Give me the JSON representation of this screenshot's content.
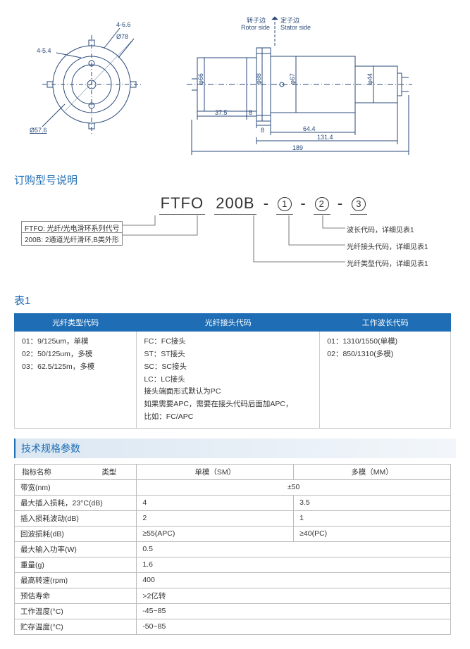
{
  "drawing": {
    "rotor_label_cn": "转子边",
    "rotor_label_en": "Rotor side",
    "stator_label_cn": "定子边",
    "stator_label_en": "Stator side",
    "dim_4_66": "4-6.6",
    "dim_phi78": "Ø78",
    "dim_4_54": "4-5.4",
    "dim_phi576": "Ø57.6",
    "dim_phi66": "φ66",
    "dim_phi88": "φ88",
    "dim_phi67": "φ67",
    "dim_phi44": "φ44",
    "dim_375": "37.5",
    "dim_8a": "8",
    "dim_8b": "8",
    "dim_644": "64.4",
    "dim_1314": "131.4",
    "dim_189": "189",
    "stroke": "#2a4a7a",
    "thin_stroke": "#2a4a7a"
  },
  "ordering": {
    "title": "订购型号说明",
    "prefix": "FTFO",
    "base": "200B",
    "sep": "-",
    "p1": "1",
    "p2": "2",
    "p3": "3",
    "ftfo_desc": "FTFO: 光纤/光电滑环系列代号",
    "b200_desc": "200B: 2通道光纤滑环,B类外形",
    "lbl_wavelength": "波长代码，详细见表1",
    "lbl_connector": "光纤接头代码，详细见表1",
    "lbl_fibertype": "光纤类型代码，详细见表1"
  },
  "table1": {
    "title": "表1",
    "h1": "光纤类型代码",
    "h2": "光纤接头代码",
    "h3": "工作波长代码",
    "c1": "01：9/125um，单模\n02：50/125um，多模\n03：62.5/125m，多模",
    "c2": "FC：FC接头\nST：ST接头\nSC：SC接头\nLC：LC接头\n接头端面形式默认为PC\n如果需要APC，需要在接头代码后面加APC，\n比如：FC/APC",
    "c3": "01：1310/1550(单模)\n02：850/1310(多模)"
  },
  "spec": {
    "header": "技术规格参数",
    "col_name": "指标名称",
    "col_type": "类型",
    "col_sm": "单模（SM）",
    "col_mm": "多模（MM）",
    "rows": [
      {
        "n": "带宽(nm)",
        "v": "±50",
        "span": true
      },
      {
        "n": "最大插入损耗，23°C(dB)",
        "sm": "4",
        "mm": "3.5"
      },
      {
        "n": "插入损耗波动(dB)",
        "sm": "2",
        "mm": "1"
      },
      {
        "n": "回波损耗(dB)",
        "sm": "≥55(APC)",
        "mm": "≥40(PC)"
      },
      {
        "n": "最大输入功率(W)",
        "v": "0.5",
        "span": true,
        "left": true
      },
      {
        "n": "重量(g)",
        "v": "1.6",
        "span": true,
        "left": true
      },
      {
        "n": "最高转速(rpm)",
        "v": "400",
        "span": true,
        "left": true
      },
      {
        "n": "预估寿命",
        "v": ">2亿转",
        "span": true,
        "left": true
      },
      {
        "n": "工作温度(°C)",
        "v": "-45~85",
        "span": true,
        "left": true
      },
      {
        "n": "贮存温度(°C)",
        "v": "-50~85",
        "span": true,
        "left": true
      }
    ]
  }
}
